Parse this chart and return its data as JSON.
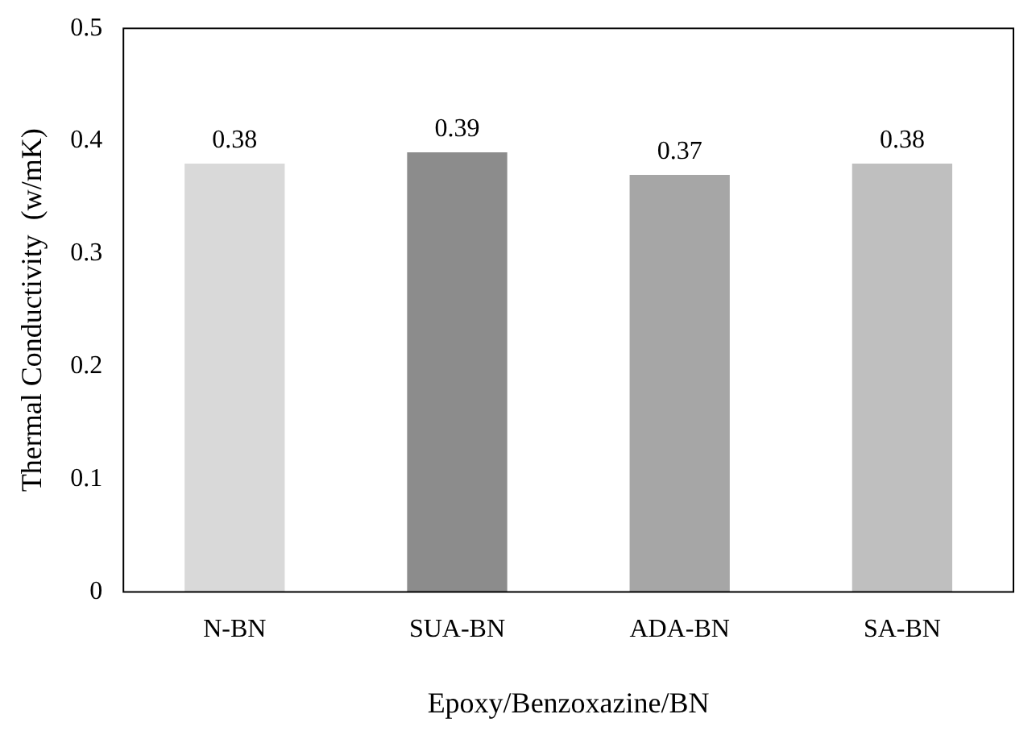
{
  "chart_data": {
    "type": "bar",
    "xlabel": "Epoxy/Benzoxazine/BN",
    "ylabel": "Thermal Conductivity  (w/mK)",
    "categories": [
      "N-BN",
      "SUA-BN",
      "ADA-BN",
      "SA-BN"
    ],
    "values": [
      0.38,
      0.39,
      0.37,
      0.38
    ],
    "colors": [
      "#d9d9d9",
      "#8c8c8c",
      "#a6a6a6",
      "#bfbfbf"
    ],
    "ylim": [
      0,
      0.5
    ],
    "yticks": [
      0,
      0.1,
      0.2,
      0.3,
      0.4,
      0.5
    ],
    "grid": false,
    "data_labels": true
  }
}
